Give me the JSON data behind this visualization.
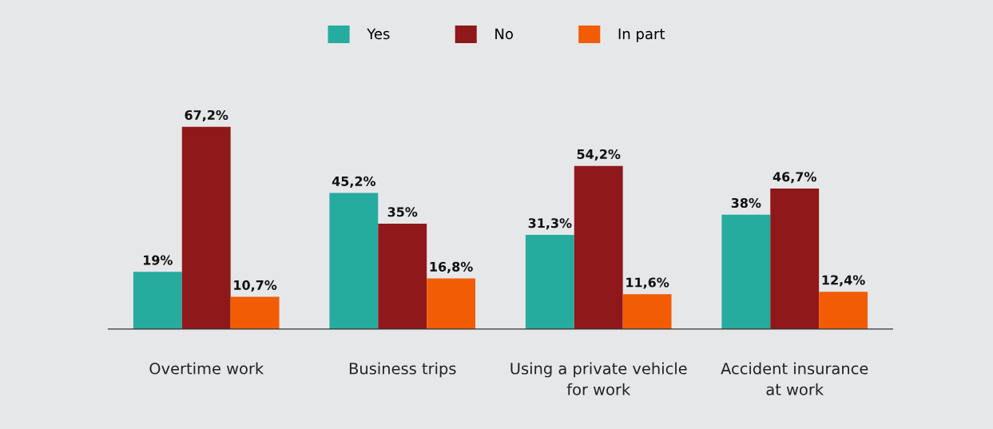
{
  "chart_data": {
    "type": "bar",
    "categories": [
      "Overtime work",
      "Business trips",
      "Using a private vehicle\nfor work",
      "Accident insurance\nat work"
    ],
    "series": [
      {
        "name": "Yes",
        "color": "#26ab9f",
        "values": [
          19,
          45.2,
          31.3,
          38
        ],
        "value_labels": [
          "19%",
          "45,2%",
          "31,3%",
          "38%"
        ]
      },
      {
        "name": "No",
        "color": "#8f181b",
        "values": [
          67.2,
          35,
          54.2,
          46.7
        ],
        "value_labels": [
          "67,2%",
          "35%",
          "54,2%",
          "46,7%"
        ]
      },
      {
        "name": "In part",
        "color": "#f25c05",
        "values": [
          10.7,
          16.8,
          11.6,
          12.4
        ],
        "value_labels": [
          "10,7%",
          "16,8%",
          "11,6%",
          "12,4%"
        ]
      }
    ],
    "legend": "top",
    "grid": false
  }
}
